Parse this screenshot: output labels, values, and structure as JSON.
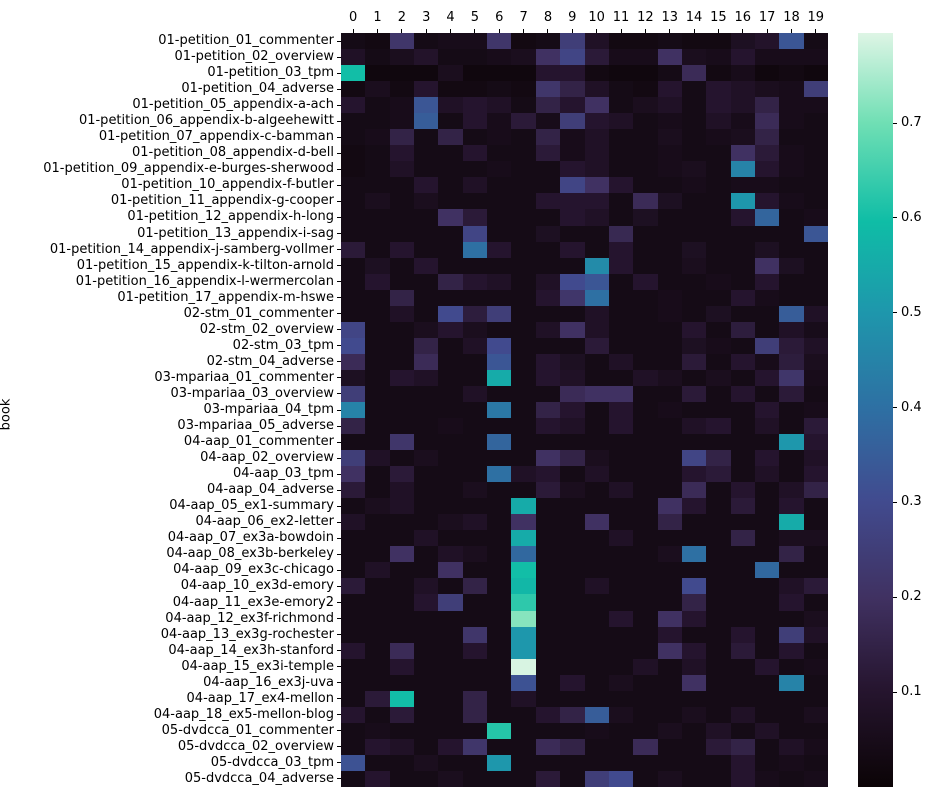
{
  "figure": {
    "background": "#ffffff",
    "text_color": "#000000"
  },
  "chart_data": {
    "type": "heatmap",
    "title": "",
    "xlabel": "",
    "ylabel": "book",
    "x_ticks_position": "top",
    "grid": false,
    "legend_position": "colorbar-right",
    "columns": [
      "0",
      "1",
      "2",
      "3",
      "4",
      "5",
      "6",
      "7",
      "8",
      "9",
      "10",
      "11",
      "12",
      "13",
      "14",
      "15",
      "16",
      "17",
      "18",
      "19"
    ],
    "rows": [
      "01-petition_01_commenter",
      "01-petition_02_overview",
      "01-petition_03_tpm",
      "01-petition_04_adverse",
      "01-petition_05_appendix-a-ach",
      "01-petition_06_appendix-b-algeehewitt",
      "01-petition_07_appendix-c-bamman",
      "01-petition_08_appendix-d-bell",
      "01-petition_09_appendix-e-burges-sherwood",
      "01-petition_10_appendix-f-butler",
      "01-petition_11_appendix-g-cooper",
      "01-petition_12_appendix-h-long",
      "01-petition_13_appendix-i-sag",
      "01-petition_14_appendix-j-samberg-vollmer",
      "01-petition_15_appendix-k-tilton-arnold",
      "01-petition_16_appendix-l-wermercolan",
      "01-petition_17_appendix-m-hswe",
      "02-stm_01_commenter",
      "02-stm_02_overview",
      "02-stm_03_tpm",
      "02-stm_04_adverse",
      "03-mpariaa_01_commenter",
      "03-mpariaa_03_overview",
      "03-mpariaa_04_tpm",
      "03-mpariaa_05_adverse",
      "04-aap_01_commenter",
      "04-aap_02_overview",
      "04-aap_03_tpm",
      "04-aap_04_adverse",
      "04-aap_05_ex1-summary",
      "04-aap_06_ex2-letter",
      "04-aap_07_ex3a-bowdoin",
      "04-aap_08_ex3b-berkeley",
      "04-aap_09_ex3c-chicago",
      "04-aap_10_ex3d-emory",
      "04-aap_11_ex3e-emory2",
      "04-aap_12_ex3f-richmond",
      "04-aap_13_ex3g-rochester",
      "04-aap_14_ex3h-stanford",
      "04-aap_15_ex3i-temple",
      "04-aap_16_ex3j-uva",
      "04-aap_17_ex4-mellon",
      "04-aap_18_ex5-mellon-blog",
      "05-dvdcca_01_commenter",
      "05-dvdcca_02_overview",
      "05-dvdcca_03_tpm",
      "05-dvdcca_04_adverse"
    ],
    "values": [
      [
        0.04,
        0.03,
        0.22,
        0.04,
        0.05,
        0.05,
        0.22,
        0.03,
        0.04,
        0.25,
        0.08,
        0.03,
        0.03,
        0.04,
        0.03,
        0.03,
        0.07,
        0.09,
        0.33,
        0.04
      ],
      [
        0.08,
        0.04,
        0.06,
        0.09,
        0.04,
        0.04,
        0.05,
        0.06,
        0.2,
        0.28,
        0.12,
        0.05,
        0.05,
        0.2,
        0.06,
        0.05,
        0.1,
        0.05,
        0.05,
        0.05
      ],
      [
        0.6,
        0.02,
        0.02,
        0.02,
        0.06,
        0.02,
        0.02,
        0.02,
        0.1,
        0.1,
        0.03,
        0.02,
        0.02,
        0.04,
        0.18,
        0.03,
        0.05,
        0.02,
        0.03,
        0.02
      ],
      [
        0.03,
        0.06,
        0.03,
        0.1,
        0.03,
        0.03,
        0.04,
        0.03,
        0.22,
        0.15,
        0.08,
        0.04,
        0.03,
        0.1,
        0.04,
        0.1,
        0.08,
        0.06,
        0.05,
        0.25
      ],
      [
        0.1,
        0.04,
        0.05,
        0.33,
        0.08,
        0.1,
        0.08,
        0.04,
        0.15,
        0.1,
        0.2,
        0.04,
        0.06,
        0.08,
        0.04,
        0.1,
        0.08,
        0.15,
        0.05,
        0.05
      ],
      [
        0.04,
        0.04,
        0.05,
        0.35,
        0.04,
        0.1,
        0.05,
        0.12,
        0.05,
        0.25,
        0.1,
        0.08,
        0.04,
        0.05,
        0.04,
        0.08,
        0.05,
        0.18,
        0.05,
        0.04
      ],
      [
        0.04,
        0.05,
        0.15,
        0.04,
        0.15,
        0.04,
        0.05,
        0.04,
        0.15,
        0.05,
        0.08,
        0.04,
        0.04,
        0.06,
        0.04,
        0.05,
        0.06,
        0.15,
        0.04,
        0.04
      ],
      [
        0.03,
        0.04,
        0.1,
        0.04,
        0.04,
        0.1,
        0.04,
        0.04,
        0.12,
        0.05,
        0.08,
        0.04,
        0.04,
        0.05,
        0.04,
        0.04,
        0.2,
        0.12,
        0.05,
        0.04
      ],
      [
        0.03,
        0.04,
        0.08,
        0.04,
        0.04,
        0.04,
        0.05,
        0.04,
        0.04,
        0.1,
        0.08,
        0.04,
        0.04,
        0.05,
        0.06,
        0.04,
        0.45,
        0.1,
        0.05,
        0.04
      ],
      [
        0.04,
        0.04,
        0.04,
        0.1,
        0.04,
        0.08,
        0.04,
        0.04,
        0.04,
        0.28,
        0.2,
        0.1,
        0.04,
        0.04,
        0.05,
        0.04,
        0.05,
        0.05,
        0.04,
        0.04
      ],
      [
        0.04,
        0.06,
        0.04,
        0.06,
        0.04,
        0.04,
        0.04,
        0.04,
        0.1,
        0.1,
        0.1,
        0.04,
        0.18,
        0.07,
        0.04,
        0.04,
        0.5,
        0.1,
        0.05,
        0.04
      ],
      [
        0.04,
        0.04,
        0.04,
        0.04,
        0.2,
        0.12,
        0.04,
        0.04,
        0.04,
        0.1,
        0.08,
        0.04,
        0.07,
        0.04,
        0.04,
        0.04,
        0.1,
        0.37,
        0.04,
        0.05
      ],
      [
        0.04,
        0.04,
        0.04,
        0.04,
        0.04,
        0.28,
        0.04,
        0.04,
        0.07,
        0.04,
        0.04,
        0.17,
        0.04,
        0.04,
        0.04,
        0.04,
        0.04,
        0.04,
        0.04,
        0.33
      ],
      [
        0.12,
        0.04,
        0.1,
        0.04,
        0.04,
        0.4,
        0.1,
        0.04,
        0.04,
        0.1,
        0.04,
        0.1,
        0.04,
        0.04,
        0.07,
        0.04,
        0.04,
        0.07,
        0.04,
        0.04
      ],
      [
        0.04,
        0.07,
        0.04,
        0.1,
        0.04,
        0.04,
        0.04,
        0.04,
        0.04,
        0.04,
        0.47,
        0.1,
        0.04,
        0.04,
        0.06,
        0.04,
        0.04,
        0.2,
        0.07,
        0.04
      ],
      [
        0.04,
        0.1,
        0.04,
        0.04,
        0.15,
        0.1,
        0.08,
        0.04,
        0.08,
        0.3,
        0.33,
        0.04,
        0.1,
        0.04,
        0.04,
        0.05,
        0.04,
        0.1,
        0.04,
        0.04
      ],
      [
        0.04,
        0.04,
        0.15,
        0.04,
        0.04,
        0.04,
        0.04,
        0.04,
        0.1,
        0.22,
        0.4,
        0.04,
        0.04,
        0.05,
        0.04,
        0.04,
        0.1,
        0.05,
        0.04,
        0.04
      ],
      [
        0.04,
        0.04,
        0.08,
        0.04,
        0.3,
        0.13,
        0.25,
        0.04,
        0.04,
        0.04,
        0.08,
        0.04,
        0.04,
        0.05,
        0.04,
        0.07,
        0.04,
        0.04,
        0.35,
        0.08
      ],
      [
        0.28,
        0.04,
        0.04,
        0.06,
        0.1,
        0.06,
        0.04,
        0.04,
        0.08,
        0.2,
        0.08,
        0.04,
        0.04,
        0.04,
        0.1,
        0.04,
        0.13,
        0.04,
        0.08,
        0.05
      ],
      [
        0.3,
        0.04,
        0.04,
        0.15,
        0.04,
        0.08,
        0.3,
        0.04,
        0.04,
        0.04,
        0.12,
        0.04,
        0.04,
        0.04,
        0.07,
        0.05,
        0.04,
        0.25,
        0.12,
        0.08
      ],
      [
        0.18,
        0.04,
        0.04,
        0.18,
        0.04,
        0.04,
        0.33,
        0.04,
        0.1,
        0.07,
        0.04,
        0.08,
        0.04,
        0.04,
        0.12,
        0.04,
        0.1,
        0.05,
        0.13,
        0.06
      ],
      [
        0.07,
        0.04,
        0.1,
        0.08,
        0.04,
        0.04,
        0.55,
        0.04,
        0.1,
        0.08,
        0.04,
        0.04,
        0.08,
        0.06,
        0.04,
        0.06,
        0.04,
        0.1,
        0.22,
        0.05
      ],
      [
        0.25,
        0.04,
        0.04,
        0.04,
        0.04,
        0.08,
        0.04,
        0.04,
        0.04,
        0.18,
        0.2,
        0.2,
        0.04,
        0.04,
        0.12,
        0.04,
        0.1,
        0.04,
        0.12,
        0.04
      ],
      [
        0.45,
        0.04,
        0.04,
        0.04,
        0.04,
        0.04,
        0.42,
        0.04,
        0.15,
        0.1,
        0.04,
        0.1,
        0.04,
        0.05,
        0.04,
        0.04,
        0.04,
        0.1,
        0.04,
        0.05
      ],
      [
        0.15,
        0.04,
        0.04,
        0.04,
        0.05,
        0.04,
        0.04,
        0.04,
        0.1,
        0.08,
        0.04,
        0.1,
        0.04,
        0.04,
        0.08,
        0.1,
        0.04,
        0.08,
        0.04,
        0.12
      ],
      [
        0.04,
        0.04,
        0.22,
        0.04,
        0.04,
        0.04,
        0.37,
        0.04,
        0.04,
        0.04,
        0.04,
        0.04,
        0.04,
        0.04,
        0.04,
        0.04,
        0.04,
        0.04,
        0.5,
        0.1
      ],
      [
        0.25,
        0.08,
        0.04,
        0.06,
        0.04,
        0.04,
        0.04,
        0.04,
        0.2,
        0.15,
        0.06,
        0.04,
        0.04,
        0.04,
        0.28,
        0.15,
        0.04,
        0.1,
        0.04,
        0.08
      ],
      [
        0.2,
        0.04,
        0.12,
        0.04,
        0.04,
        0.04,
        0.4,
        0.08,
        0.1,
        0.04,
        0.08,
        0.04,
        0.04,
        0.04,
        0.1,
        0.12,
        0.04,
        0.08,
        0.04,
        0.1
      ],
      [
        0.12,
        0.04,
        0.08,
        0.04,
        0.04,
        0.06,
        0.04,
        0.04,
        0.12,
        0.06,
        0.04,
        0.08,
        0.04,
        0.04,
        0.18,
        0.04,
        0.1,
        0.04,
        0.08,
        0.15
      ],
      [
        0.04,
        0.06,
        0.08,
        0.04,
        0.04,
        0.04,
        0.04,
        0.55,
        0.04,
        0.04,
        0.04,
        0.04,
        0.04,
        0.2,
        0.1,
        0.04,
        0.12,
        0.04,
        0.1,
        0.04
      ],
      [
        0.08,
        0.04,
        0.04,
        0.04,
        0.06,
        0.08,
        0.04,
        0.2,
        0.04,
        0.04,
        0.2,
        0.04,
        0.04,
        0.15,
        0.04,
        0.04,
        0.04,
        0.04,
        0.55,
        0.04
      ],
      [
        0.04,
        0.04,
        0.04,
        0.08,
        0.04,
        0.04,
        0.04,
        0.55,
        0.04,
        0.04,
        0.04,
        0.08,
        0.04,
        0.04,
        0.04,
        0.04,
        0.15,
        0.04,
        0.06,
        0.06
      ],
      [
        0.04,
        0.04,
        0.2,
        0.04,
        0.08,
        0.06,
        0.04,
        0.38,
        0.04,
        0.04,
        0.04,
        0.04,
        0.04,
        0.06,
        0.4,
        0.04,
        0.04,
        0.04,
        0.15,
        0.04
      ],
      [
        0.04,
        0.08,
        0.04,
        0.04,
        0.2,
        0.04,
        0.04,
        0.6,
        0.04,
        0.04,
        0.04,
        0.04,
        0.04,
        0.04,
        0.04,
        0.04,
        0.04,
        0.38,
        0.04,
        0.04
      ],
      [
        0.12,
        0.04,
        0.04,
        0.08,
        0.04,
        0.15,
        0.04,
        0.58,
        0.04,
        0.04,
        0.08,
        0.04,
        0.04,
        0.04,
        0.3,
        0.04,
        0.04,
        0.04,
        0.08,
        0.12
      ],
      [
        0.04,
        0.04,
        0.04,
        0.1,
        0.25,
        0.04,
        0.04,
        0.63,
        0.04,
        0.04,
        0.04,
        0.04,
        0.04,
        0.04,
        0.15,
        0.04,
        0.04,
        0.04,
        0.1,
        0.04
      ],
      [
        0.04,
        0.04,
        0.04,
        0.04,
        0.04,
        0.04,
        0.04,
        0.72,
        0.04,
        0.04,
        0.04,
        0.1,
        0.04,
        0.2,
        0.1,
        0.04,
        0.04,
        0.04,
        0.04,
        0.06
      ],
      [
        0.04,
        0.04,
        0.04,
        0.04,
        0.04,
        0.22,
        0.04,
        0.5,
        0.04,
        0.04,
        0.04,
        0.04,
        0.04,
        0.1,
        0.04,
        0.04,
        0.1,
        0.04,
        0.25,
        0.08
      ],
      [
        0.1,
        0.04,
        0.18,
        0.04,
        0.04,
        0.1,
        0.04,
        0.5,
        0.04,
        0.04,
        0.04,
        0.04,
        0.04,
        0.2,
        0.1,
        0.04,
        0.12,
        0.04,
        0.1,
        0.04
      ],
      [
        0.04,
        0.04,
        0.1,
        0.04,
        0.04,
        0.04,
        0.04,
        0.79,
        0.04,
        0.04,
        0.04,
        0.04,
        0.08,
        0.04,
        0.08,
        0.04,
        0.04,
        0.1,
        0.04,
        0.05
      ],
      [
        0.04,
        0.04,
        0.04,
        0.04,
        0.04,
        0.04,
        0.04,
        0.32,
        0.04,
        0.1,
        0.04,
        0.06,
        0.04,
        0.04,
        0.2,
        0.04,
        0.04,
        0.04,
        0.45,
        0.04
      ],
      [
        0.04,
        0.12,
        0.6,
        0.04,
        0.04,
        0.15,
        0.04,
        0.08,
        0.04,
        0.04,
        0.04,
        0.04,
        0.04,
        0.04,
        0.04,
        0.04,
        0.04,
        0.04,
        0.04,
        0.04
      ],
      [
        0.1,
        0.04,
        0.12,
        0.04,
        0.04,
        0.15,
        0.04,
        0.04,
        0.1,
        0.15,
        0.35,
        0.06,
        0.04,
        0.04,
        0.06,
        0.04,
        0.08,
        0.04,
        0.04,
        0.06
      ],
      [
        0.04,
        0.05,
        0.04,
        0.04,
        0.04,
        0.04,
        0.62,
        0.04,
        0.04,
        0.04,
        0.05,
        0.04,
        0.04,
        0.06,
        0.04,
        0.08,
        0.04,
        0.08,
        0.04,
        0.04
      ],
      [
        0.04,
        0.1,
        0.08,
        0.04,
        0.1,
        0.22,
        0.04,
        0.04,
        0.18,
        0.15,
        0.04,
        0.04,
        0.18,
        0.04,
        0.04,
        0.12,
        0.15,
        0.04,
        0.08,
        0.05
      ],
      [
        0.32,
        0.04,
        0.04,
        0.06,
        0.04,
        0.04,
        0.5,
        0.04,
        0.04,
        0.04,
        0.04,
        0.04,
        0.04,
        0.04,
        0.04,
        0.04,
        0.1,
        0.04,
        0.05,
        0.04
      ],
      [
        0.04,
        0.1,
        0.04,
        0.04,
        0.06,
        0.04,
        0.04,
        0.04,
        0.12,
        0.04,
        0.25,
        0.3,
        0.04,
        0.06,
        0.04,
        0.04,
        0.1,
        0.05,
        0.04,
        0.05
      ]
    ],
    "vmin": 0,
    "vmax": 0.795,
    "colormap": "mako",
    "colormap_stops": [
      [
        0.0,
        "#0b0406"
      ],
      [
        0.13,
        "#26152f"
      ],
      [
        0.25,
        "#403161"
      ],
      [
        0.38,
        "#414b8f"
      ],
      [
        0.5,
        "#2e6fa3"
      ],
      [
        0.63,
        "#1e97ac"
      ],
      [
        0.75,
        "#0fbda6"
      ],
      [
        0.88,
        "#6fdfb4"
      ],
      [
        1.0,
        "#def5e5"
      ]
    ],
    "colorbar": {
      "tick_values": [
        0.1,
        0.2,
        0.3,
        0.4,
        0.5,
        0.6,
        0.7
      ],
      "tick_labels": [
        "0.1",
        "0.2",
        "0.3",
        "0.4",
        "0.5",
        "0.6",
        "0.7"
      ]
    }
  }
}
